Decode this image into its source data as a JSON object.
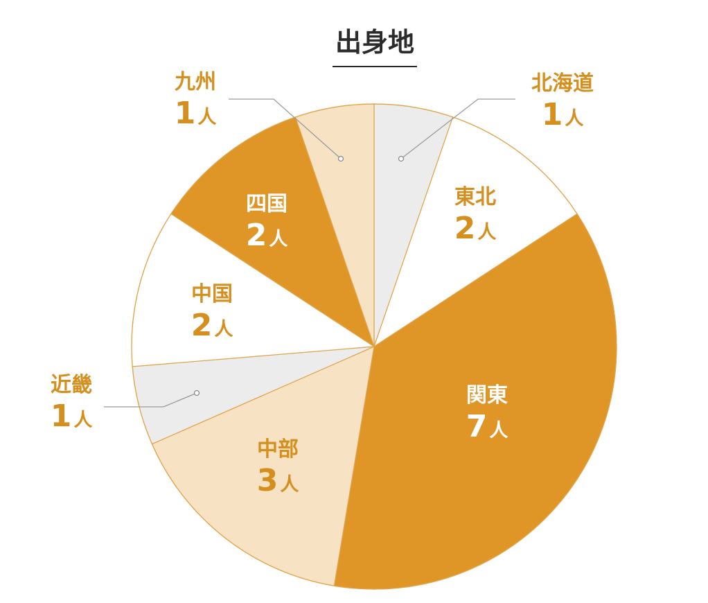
{
  "chart_data": {
    "type": "pie",
    "title": "出身地",
    "unit": "人",
    "slices": [
      {
        "label": "北海道",
        "value": 1,
        "color": "#ececec"
      },
      {
        "label": "東北",
        "value": 2,
        "color": "#ffffff"
      },
      {
        "label": "関東",
        "value": 7,
        "color": "#df9627"
      },
      {
        "label": "中部",
        "value": 3,
        "color": "#f7e2c3"
      },
      {
        "label": "近畿",
        "value": 1,
        "color": "#ececec"
      },
      {
        "label": "中国",
        "value": 2,
        "color": "#ffffff"
      },
      {
        "label": "四国",
        "value": 2,
        "color": "#df9627"
      },
      {
        "label": "九州",
        "value": 1,
        "color": "#f7e2c3"
      }
    ],
    "label_color": "#d48f1f",
    "label_color_on_dark": "#ffffff",
    "border_color": "#e0a44a",
    "leader_line_color": "#9a9a9a"
  }
}
